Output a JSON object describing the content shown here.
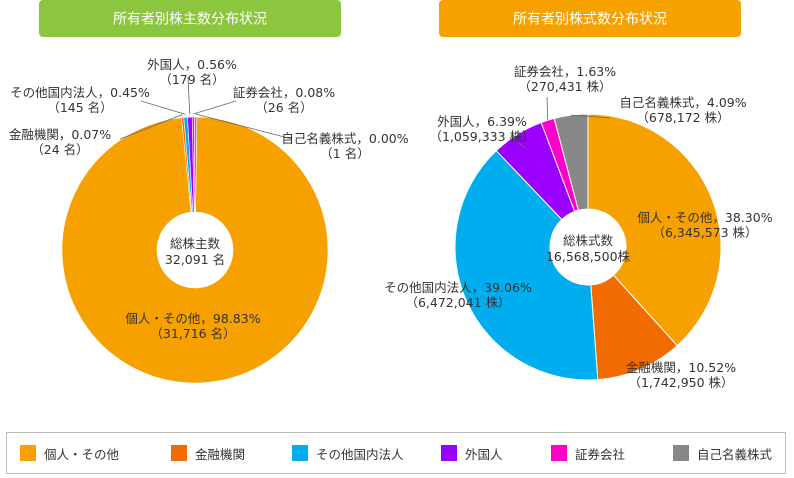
{
  "chart_data": [
    {
      "type": "pie",
      "variant": "donut",
      "title": "所有者別株主数分布状況",
      "center_label": [
        "総株主数",
        "32,091 名"
      ],
      "slices": [
        {
          "name": "個人・その他",
          "value": 98.83,
          "pct_label": "個人・その他，98.83%",
          "count_label": "（31,716 名）",
          "color": "#f7a100"
        },
        {
          "name": "金融機関",
          "value": 0.07,
          "pct_label": "金融機関，0.07%",
          "count_label": "（24 名）",
          "color": "#f26b00"
        },
        {
          "name": "その他国内法人",
          "value": 0.45,
          "pct_label": "その他国内法人，0.45%",
          "count_label": "（145 名）",
          "color": "#00aeef"
        },
        {
          "name": "外国人",
          "value": 0.56,
          "pct_label": "外国人，0.56%",
          "count_label": "（179 名）",
          "color": "#9b00ff"
        },
        {
          "name": "証券会社",
          "value": 0.08,
          "pct_label": "証券会社，0.08%",
          "count_label": "（26 名）",
          "color": "#ff00cc"
        },
        {
          "name": "自己名義株式",
          "value": 0.0,
          "pct_label": "自己名義株式，0.00%",
          "count_label": "（1 名）",
          "color": "#888888"
        }
      ]
    },
    {
      "type": "pie",
      "variant": "donut",
      "title": "所有者別株式数分布状況",
      "center_label": [
        "総株式数",
        "16,568,500株"
      ],
      "slices": [
        {
          "name": "個人・その他",
          "value": 38.3,
          "pct_label": "個人・その他，38.30%",
          "count_label": "（6,345,573 株）",
          "color": "#f7a100"
        },
        {
          "name": "金融機関",
          "value": 10.52,
          "pct_label": "金融機関，10.52%",
          "count_label": "（1,742,950 株）",
          "color": "#f26b00"
        },
        {
          "name": "その他国内法人",
          "value": 39.06,
          "pct_label": "その他国内法人，39.06%",
          "count_label": "（6,472,041 株）",
          "color": "#00aeef"
        },
        {
          "name": "外国人",
          "value": 6.39,
          "pct_label": "外国人，6.39%",
          "count_label": "（1,059,333 株）",
          "color": "#9b00ff"
        },
        {
          "name": "証券会社",
          "value": 1.63,
          "pct_label": "証券会社，1.63%",
          "count_label": "（270,431 株）",
          "color": "#ff00cc"
        },
        {
          "name": "自己名義株式",
          "value": 4.09,
          "pct_label": "自己名義株式，4.09%",
          "count_label": "（678,172 株）",
          "color": "#888888"
        }
      ]
    }
  ],
  "titles": {
    "left": {
      "text": "所有者別株主数分布状況",
      "color": "#8cc63f"
    },
    "right": {
      "text": "所有者別株式数分布状況",
      "color": "#f7a100"
    }
  },
  "legend": [
    {
      "label": "個人・その他",
      "color": "#f7a100"
    },
    {
      "label": "金融機関",
      "color": "#f26b00"
    },
    {
      "label": "その他国内法人",
      "color": "#00aeef"
    },
    {
      "label": "外国人",
      "color": "#9b00ff"
    },
    {
      "label": "証券会社",
      "color": "#ff00cc"
    },
    {
      "label": "自己名義株式",
      "color": "#888888"
    }
  ]
}
